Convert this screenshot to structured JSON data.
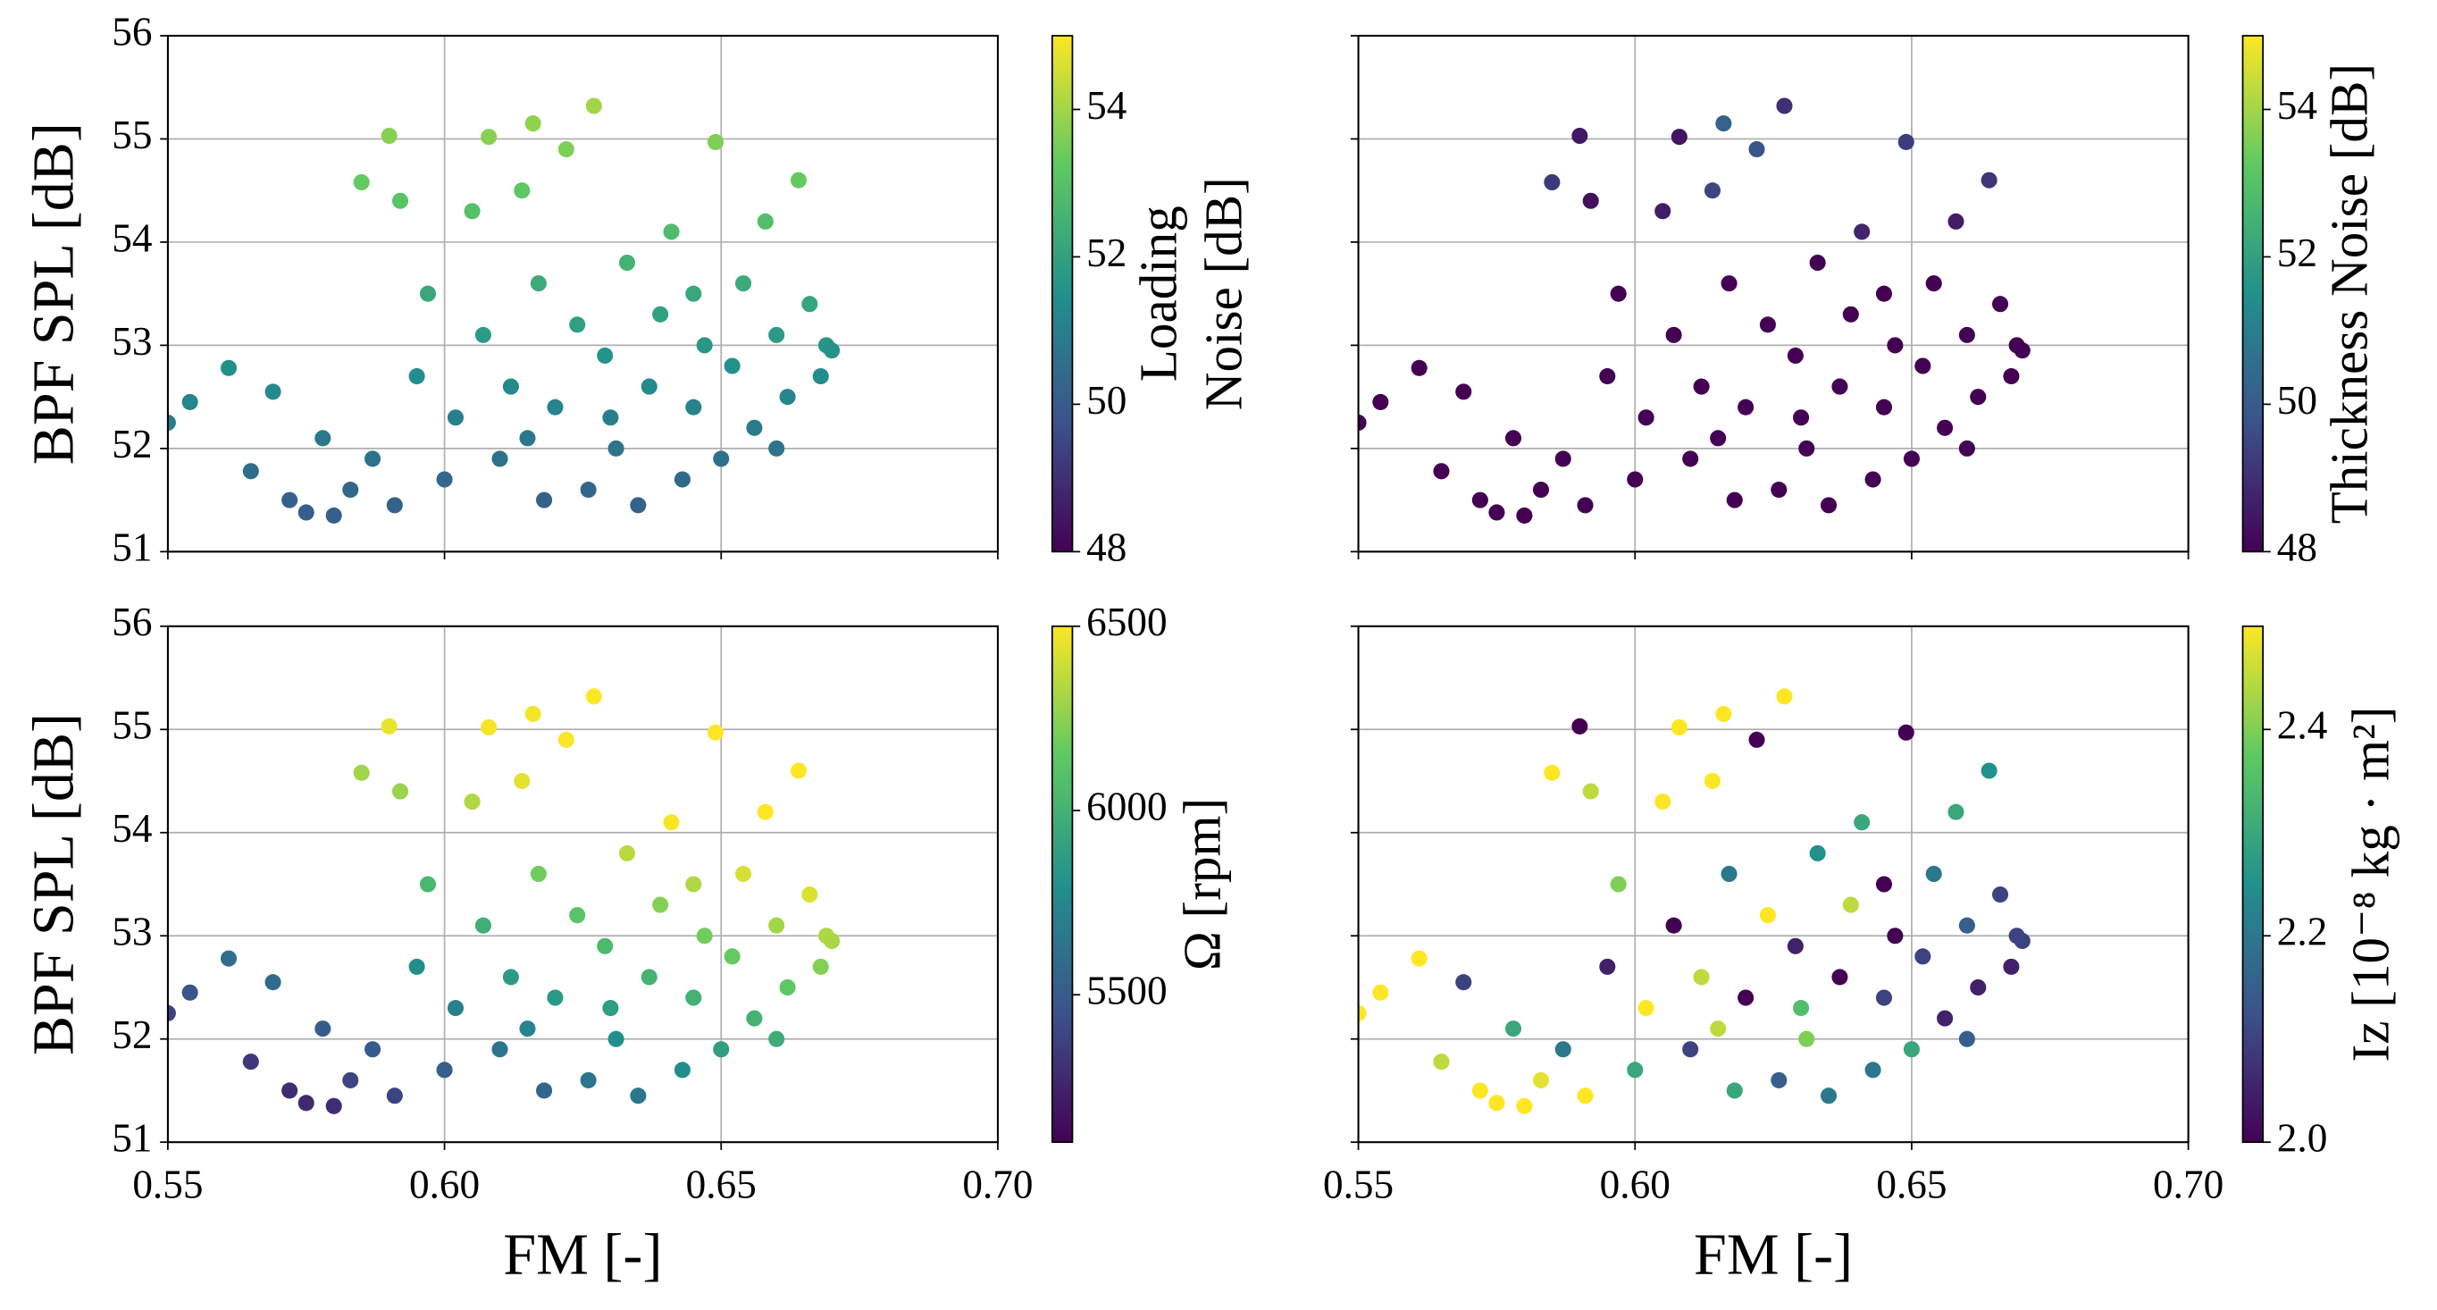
{
  "chart_data": [
    {
      "type": "scatter",
      "cmap": "viridis",
      "grid": true,
      "ylabel": "BPF SPL [dB]",
      "colorbar_label": [
        "Loading",
        "Noise [dB]"
      ],
      "xlim": [
        0.55,
        0.7
      ],
      "xticks": [
        0.55,
        0.6,
        0.65,
        0.7
      ],
      "show_xtick_labels": false,
      "ylim": [
        51,
        56
      ],
      "yticks": [
        51,
        52,
        53,
        54,
        55,
        56
      ],
      "show_ytick_labels": true,
      "clim": [
        48,
        55
      ],
      "cticks": [
        48,
        50,
        52,
        54
      ],
      "x": [
        0.55,
        0.554,
        0.561,
        0.565,
        0.569,
        0.572,
        0.575,
        0.578,
        0.58,
        0.583,
        0.585,
        0.587,
        0.59,
        0.591,
        0.592,
        0.595,
        0.597,
        0.6,
        0.602,
        0.605,
        0.607,
        0.608,
        0.61,
        0.612,
        0.614,
        0.616,
        0.617,
        0.618,
        0.62,
        0.622,
        0.624,
        0.626,
        0.627,
        0.629,
        0.631,
        0.633,
        0.635,
        0.637,
        0.639,
        0.641,
        0.643,
        0.645,
        0.647,
        0.649,
        0.65,
        0.652,
        0.654,
        0.656,
        0.658,
        0.66,
        0.662,
        0.664,
        0.666,
        0.668,
        0.669,
        0.67,
        0.66,
        0.645,
        0.63,
        0.615
      ],
      "values": [
        52.25,
        52.45,
        52.78,
        51.78,
        52.55,
        51.5,
        51.38,
        52.1,
        51.35,
        51.6,
        54.58,
        51.9,
        55.03,
        51.45,
        54.4,
        52.7,
        53.5,
        51.7,
        52.3,
        54.3,
        53.1,
        55.02,
        51.9,
        52.6,
        54.5,
        55.15,
        53.6,
        51.5,
        52.4,
        54.9,
        53.2,
        51.6,
        55.32,
        52.9,
        52.0,
        53.8,
        51.45,
        52.6,
        53.3,
        54.1,
        51.7,
        52.4,
        53.0,
        54.97,
        51.9,
        52.8,
        53.6,
        52.2,
        54.2,
        53.1,
        52.5,
        54.6,
        53.4,
        52.7,
        53.0,
        52.95,
        52.0,
        53.5,
        52.3,
        52.1
      ],
      "colors": [
        51.0,
        51.2,
        51.5,
        50.5,
        51.3,
        50.2,
        50.1,
        50.8,
        50.1,
        50.3,
        53.3,
        50.6,
        53.7,
        50.2,
        53.1,
        51.4,
        52.2,
        50.4,
        51.0,
        53.0,
        51.8,
        53.7,
        50.6,
        51.3,
        53.2,
        53.8,
        52.3,
        50.2,
        51.1,
        53.6,
        51.9,
        50.3,
        54.0,
        51.6,
        50.7,
        52.5,
        50.2,
        51.3,
        52.0,
        52.8,
        50.4,
        51.1,
        51.7,
        53.6,
        50.6,
        51.5,
        52.3,
        50.9,
        52.9,
        51.8,
        51.2,
        53.3,
        52.1,
        51.4,
        51.7,
        51.6,
        50.7,
        52.2,
        51.0,
        50.8
      ]
    },
    {
      "type": "scatter",
      "cmap": "viridis",
      "grid": true,
      "colorbar_label": [
        "Thickness Noise [dB]"
      ],
      "xlim": [
        0.55,
        0.7
      ],
      "xticks": [
        0.55,
        0.6,
        0.65,
        0.7
      ],
      "show_xtick_labels": false,
      "ylim": [
        51,
        56
      ],
      "yticks": [
        51,
        52,
        53,
        54,
        55,
        56
      ],
      "show_ytick_labels": false,
      "clim": [
        48,
        55
      ],
      "cticks": [
        48,
        50,
        52,
        54
      ],
      "x": [
        0.55,
        0.554,
        0.561,
        0.565,
        0.569,
        0.572,
        0.575,
        0.578,
        0.58,
        0.583,
        0.585,
        0.587,
        0.59,
        0.591,
        0.592,
        0.595,
        0.597,
        0.6,
        0.602,
        0.605,
        0.607,
        0.608,
        0.61,
        0.612,
        0.614,
        0.616,
        0.617,
        0.618,
        0.62,
        0.622,
        0.624,
        0.626,
        0.627,
        0.629,
        0.631,
        0.633,
        0.635,
        0.637,
        0.639,
        0.641,
        0.643,
        0.645,
        0.647,
        0.649,
        0.65,
        0.652,
        0.654,
        0.656,
        0.658,
        0.66,
        0.662,
        0.664,
        0.666,
        0.668,
        0.669,
        0.67,
        0.66,
        0.645,
        0.63,
        0.615
      ],
      "values": [
        52.25,
        52.45,
        52.78,
        51.78,
        52.55,
        51.5,
        51.38,
        52.1,
        51.35,
        51.6,
        54.58,
        51.9,
        55.03,
        51.45,
        54.4,
        52.7,
        53.5,
        51.7,
        52.3,
        54.3,
        53.1,
        55.02,
        51.9,
        52.6,
        54.5,
        55.15,
        53.6,
        51.5,
        52.4,
        54.9,
        53.2,
        51.6,
        55.32,
        52.9,
        52.0,
        53.8,
        51.45,
        52.6,
        53.3,
        54.1,
        51.7,
        52.4,
        53.0,
        54.97,
        51.9,
        52.8,
        53.6,
        52.2,
        54.2,
        53.1,
        52.5,
        54.6,
        53.4,
        52.7,
        53.0,
        52.95,
        52.0,
        53.5,
        52.3,
        52.1
      ],
      "colors": [
        48.0,
        48.0,
        48.0,
        48.0,
        48.0,
        48.0,
        48.0,
        48.0,
        48.0,
        48.0,
        49.2,
        48.0,
        48.5,
        48.0,
        48.3,
        48.0,
        48.0,
        48.0,
        48.0,
        48.6,
        48.0,
        48.4,
        48.0,
        48.0,
        49.5,
        50.2,
        48.0,
        48.0,
        48.0,
        49.8,
        48.0,
        48.0,
        49.0,
        48.0,
        48.0,
        48.0,
        48.0,
        48.0,
        48.0,
        48.8,
        48.0,
        48.0,
        48.0,
        49.3,
        48.0,
        48.0,
        48.0,
        48.0,
        48.6,
        48.0,
        48.0,
        49.1,
        48.0,
        48.0,
        48.0,
        48.0,
        48.0,
        48.0,
        48.0,
        48.0
      ]
    },
    {
      "type": "scatter",
      "cmap": "viridis",
      "grid": true,
      "ylabel": "BPF SPL [dB]",
      "xlabel": "FM [-]",
      "colorbar_label": [
        "Ω [rpm]"
      ],
      "xlim": [
        0.55,
        0.7
      ],
      "xticks": [
        {
          "value": 0.55,
          "label": "0.55"
        },
        {
          "value": 0.6,
          "label": "0.60"
        },
        {
          "value": 0.65,
          "label": "0.65"
        },
        {
          "value": 0.7,
          "label": "0.70"
        }
      ],
      "show_xtick_labels": true,
      "ylim": [
        51,
        56
      ],
      "yticks": [
        51,
        52,
        53,
        54,
        55,
        56
      ],
      "show_ytick_labels": true,
      "clim": [
        5100,
        6500
      ],
      "cticks": [
        5500,
        6000,
        6500
      ],
      "x": [
        0.55,
        0.554,
        0.561,
        0.565,
        0.569,
        0.572,
        0.575,
        0.578,
        0.58,
        0.583,
        0.585,
        0.587,
        0.59,
        0.591,
        0.592,
        0.595,
        0.597,
        0.6,
        0.602,
        0.605,
        0.607,
        0.608,
        0.61,
        0.612,
        0.614,
        0.616,
        0.617,
        0.618,
        0.62,
        0.622,
        0.624,
        0.626,
        0.627,
        0.629,
        0.631,
        0.633,
        0.635,
        0.637,
        0.639,
        0.641,
        0.643,
        0.645,
        0.647,
        0.649,
        0.65,
        0.652,
        0.654,
        0.656,
        0.658,
        0.66,
        0.662,
        0.664,
        0.666,
        0.668,
        0.669,
        0.67,
        0.66,
        0.645,
        0.63,
        0.615
      ],
      "values": [
        52.25,
        52.45,
        52.78,
        51.78,
        52.55,
        51.5,
        51.38,
        52.1,
        51.35,
        51.6,
        54.58,
        51.9,
        55.03,
        51.45,
        54.4,
        52.7,
        53.5,
        51.7,
        52.3,
        54.3,
        53.1,
        55.02,
        51.9,
        52.6,
        54.5,
        55.15,
        53.6,
        51.5,
        52.4,
        54.9,
        53.2,
        51.6,
        55.32,
        52.9,
        52.0,
        53.8,
        51.45,
        52.6,
        53.3,
        54.1,
        51.7,
        52.4,
        53.0,
        54.97,
        51.9,
        52.8,
        53.6,
        52.2,
        54.2,
        53.1,
        52.5,
        54.6,
        53.4,
        52.7,
        53.0,
        52.95,
        52.0,
        53.5,
        52.3,
        52.1
      ],
      "colors": [
        5385,
        5469,
        5610,
        5334,
        5589,
        5292,
        5274,
        5508,
        5295,
        5388,
        6294,
        5502,
        6459,
        5391,
        6282,
        5790,
        6042,
        5520,
        5712,
        6330,
        5982,
        6480,
        5640,
        5862,
        6444,
        6480,
        6192,
        5568,
        5850,
        6490,
        6114,
        5646,
        6500,
        6054,
        5796,
        6348,
        5655,
        6012,
        6234,
        6486,
        5778,
        6000,
        6192,
        6500,
        5880,
        6162,
        6414,
        6006,
        6500,
        6300,
        6132,
        6500,
        6426,
        6228,
        6324,
        6315,
        5970,
        6330,
        5880,
        5730
      ]
    },
    {
      "type": "scatter",
      "cmap": "viridis",
      "grid": true,
      "xlabel": "FM [-]",
      "colorbar_label": [
        "Iz [10⁻⁸ kg · m²]"
      ],
      "xlim": [
        0.55,
        0.7
      ],
      "xticks": [
        {
          "value": 0.55,
          "label": "0.55"
        },
        {
          "value": 0.6,
          "label": "0.60"
        },
        {
          "value": 0.65,
          "label": "0.65"
        },
        {
          "value": 0.7,
          "label": "0.70"
        }
      ],
      "show_xtick_labels": true,
      "ylim": [
        51,
        56
      ],
      "yticks": [
        51,
        52,
        53,
        54,
        55,
        56
      ],
      "show_ytick_labels": false,
      "clim": [
        2.0,
        2.5
      ],
      "cticks": [
        {
          "value": 2.0,
          "label": "2.0"
        },
        2.2,
        2.4
      ],
      "x": [
        0.55,
        0.554,
        0.561,
        0.565,
        0.569,
        0.572,
        0.575,
        0.578,
        0.58,
        0.583,
        0.585,
        0.587,
        0.59,
        0.591,
        0.592,
        0.595,
        0.597,
        0.6,
        0.602,
        0.605,
        0.607,
        0.608,
        0.61,
        0.612,
        0.614,
        0.616,
        0.617,
        0.618,
        0.62,
        0.622,
        0.624,
        0.626,
        0.627,
        0.629,
        0.631,
        0.633,
        0.635,
        0.637,
        0.639,
        0.641,
        0.643,
        0.645,
        0.647,
        0.649,
        0.65,
        0.652,
        0.654,
        0.656,
        0.658,
        0.66,
        0.662,
        0.664,
        0.666,
        0.668,
        0.669,
        0.67,
        0.66,
        0.645,
        0.63,
        0.615
      ],
      "values": [
        52.25,
        52.45,
        52.78,
        51.78,
        52.55,
        51.5,
        51.38,
        52.1,
        51.35,
        51.6,
        54.58,
        51.9,
        55.03,
        51.45,
        54.4,
        52.7,
        53.5,
        51.7,
        52.3,
        54.3,
        53.1,
        55.02,
        51.9,
        52.6,
        54.5,
        55.15,
        53.6,
        51.5,
        52.4,
        54.9,
        53.2,
        51.6,
        55.32,
        52.9,
        52.0,
        53.8,
        51.45,
        52.6,
        53.3,
        54.1,
        51.7,
        52.4,
        53.0,
        54.97,
        51.9,
        52.8,
        53.6,
        52.2,
        54.2,
        53.1,
        52.5,
        54.6,
        53.4,
        52.7,
        53.0,
        52.95,
        52.0,
        53.5,
        52.3,
        52.1
      ],
      "colors": [
        2.5,
        2.5,
        2.5,
        2.45,
        2.1,
        2.5,
        2.5,
        2.3,
        2.5,
        2.48,
        2.5,
        2.2,
        2.0,
        2.5,
        2.45,
        2.05,
        2.4,
        2.3,
        2.5,
        2.5,
        2.0,
        2.5,
        2.1,
        2.45,
        2.5,
        2.5,
        2.2,
        2.3,
        2.0,
        2.0,
        2.5,
        2.15,
        2.5,
        2.05,
        2.4,
        2.25,
        2.2,
        2.0,
        2.45,
        2.3,
        2.2,
        2.1,
        2.0,
        2.0,
        2.3,
        2.1,
        2.2,
        2.05,
        2.3,
        2.15,
        2.05,
        2.25,
        2.1,
        2.05,
        2.1,
        2.1,
        2.15,
        2.0,
        2.35,
        2.45
      ]
    }
  ]
}
